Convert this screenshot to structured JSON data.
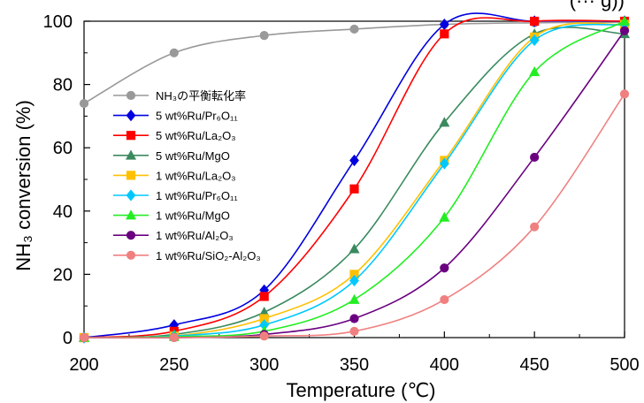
{
  "chart_data": {
    "type": "line",
    "title_partial": "(··· g))",
    "xlabel": "Temperature (℃)",
    "ylabel": "NH₃ conversion (%)",
    "xlim": [
      200,
      500
    ],
    "ylim": [
      0,
      100
    ],
    "x_ticks": [
      200,
      250,
      300,
      350,
      400,
      450,
      500
    ],
    "y_ticks": [
      0,
      20,
      40,
      60,
      80,
      100
    ],
    "legend_position": "left",
    "series": [
      {
        "name": "NH₃の平衡転化率",
        "color": "#999999",
        "marker": "circle",
        "x": [
          200,
          250,
          300,
          350,
          400,
          450,
          500
        ],
        "y": [
          74,
          90,
          95.5,
          97.5,
          99,
          99.5,
          99.7
        ]
      },
      {
        "name": "5 wt%Ru/Pr₆O₁₁",
        "color": "#0000e0",
        "marker": "diamond",
        "x": [
          200,
          250,
          300,
          350,
          400,
          450,
          500
        ],
        "y": [
          0,
          4,
          15,
          56,
          99,
          100,
          100
        ]
      },
      {
        "name": "5 wt%Ru/La₂O₃",
        "color": "#ff0000",
        "marker": "square",
        "x": [
          200,
          250,
          300,
          350,
          400,
          450,
          500
        ],
        "y": [
          0,
          2,
          13,
          47,
          96,
          100,
          100
        ]
      },
      {
        "name": "5 wt%Ru/MgO",
        "color": "#3a8a5e",
        "marker": "triangle",
        "x": [
          200,
          250,
          300,
          350,
          400,
          450,
          500
        ],
        "y": [
          0,
          1,
          8,
          28,
          68,
          96,
          96
        ]
      },
      {
        "name": "1 wt%Ru/La₂O₃",
        "color": "#ffc000",
        "marker": "square",
        "x": [
          200,
          250,
          300,
          350,
          400,
          450,
          500
        ],
        "y": [
          0,
          0.5,
          6,
          20,
          56,
          95,
          99
        ]
      },
      {
        "name": "1 wt%Ru/Pr₆O₁₁",
        "color": "#00c8ff",
        "marker": "diamond",
        "x": [
          200,
          250,
          300,
          350,
          400,
          450,
          500
        ],
        "y": [
          0,
          0.5,
          4,
          18,
          55,
          94,
          99
        ]
      },
      {
        "name": "1 wt%Ru/MgO",
        "color": "#22ee22",
        "marker": "triangle",
        "x": [
          200,
          250,
          300,
          350,
          400,
          450,
          500
        ],
        "y": [
          0,
          0.3,
          2,
          12,
          38,
          84,
          100
        ]
      },
      {
        "name": "1 wt%Ru/Al₂O₃",
        "color": "#6a0080",
        "marker": "circle",
        "x": [
          200,
          250,
          300,
          350,
          400,
          450,
          500
        ],
        "y": [
          0,
          0,
          1,
          6,
          22,
          57,
          97
        ]
      },
      {
        "name": "1 wt%Ru/SiO₂-Al₂O₃",
        "color": "#f08080",
        "marker": "circle",
        "x": [
          200,
          250,
          300,
          350,
          400,
          450,
          500
        ],
        "y": [
          0,
          0,
          0.5,
          2,
          12,
          35,
          77
        ]
      }
    ]
  }
}
